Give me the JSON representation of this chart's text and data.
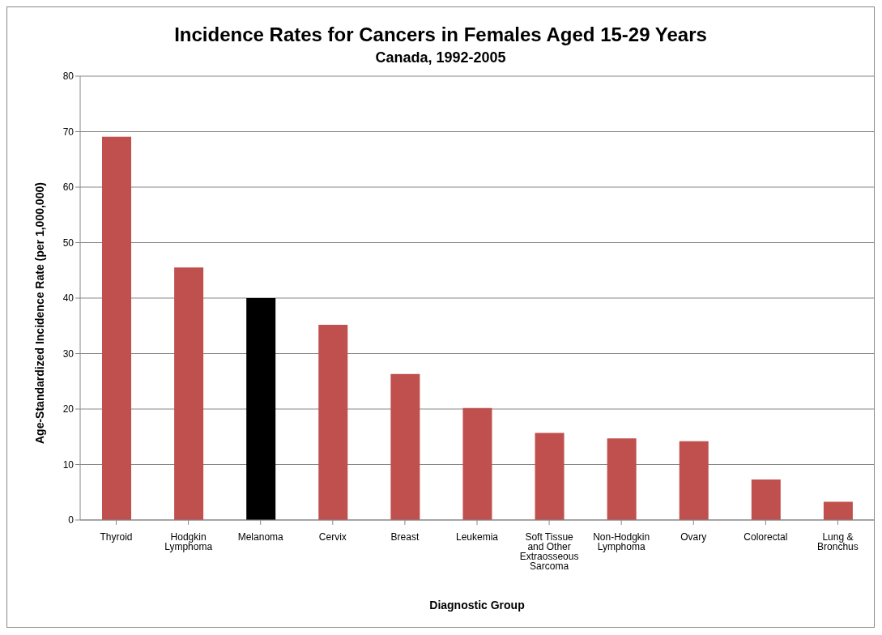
{
  "chart_data": {
    "type": "bar",
    "title": "Incidence Rates for Cancers in Females Aged 15-29 Years",
    "subtitle": "Canada, 1992-2005",
    "xlabel": "Diagnostic Group",
    "ylabel": "Age-Standardized Incidence Rate (per 1,000,000)",
    "categories": [
      "Thyroid",
      "Hodgkin Lymphoma",
      "Melanoma",
      "Cervix",
      "Breast",
      "Leukemia",
      "Soft Tissue and Other Extraosseous Sarcoma",
      "Non-Hodgkin Lymphoma",
      "Ovary",
      "Colorectal",
      "Lung & Bronchus"
    ],
    "values": [
      69.1,
      45.5,
      40,
      35.2,
      26.3,
      20.2,
      15.7,
      14.7,
      14.2,
      7.3,
      3.3
    ],
    "colors": [
      "#c0504d",
      "#c0504d",
      "#000000",
      "#c0504d",
      "#c0504d",
      "#c0504d",
      "#c0504d",
      "#c0504d",
      "#c0504d",
      "#c0504d",
      "#c0504d"
    ],
    "ylim": [
      0,
      80
    ],
    "yticks": [
      0,
      10,
      20,
      30,
      40,
      50,
      60,
      70,
      80
    ],
    "grid": "y",
    "legend": false
  }
}
